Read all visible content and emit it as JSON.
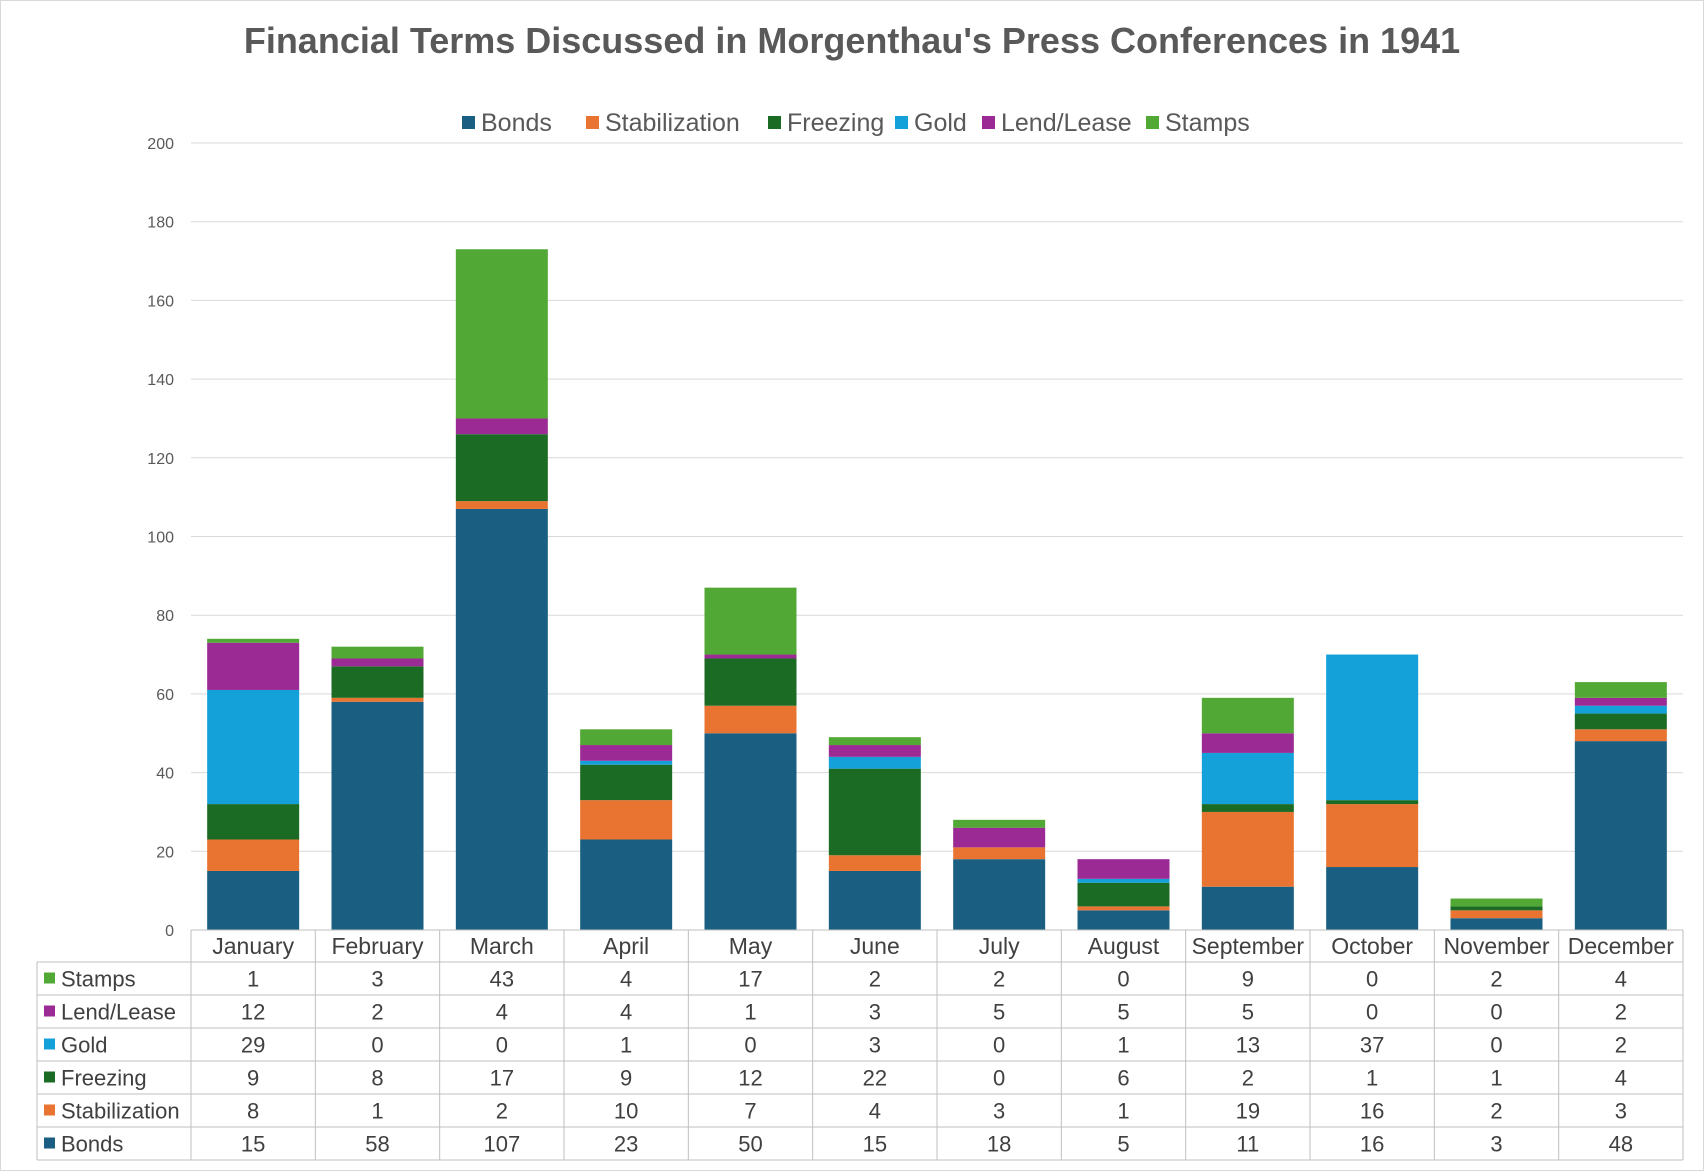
{
  "chart_data": {
    "type": "bar",
    "stacked": true,
    "title": "Financial Terms Discussed in Morgenthau's Press Conferences in 1941",
    "xlabel": "",
    "ylabel": "",
    "ylim": [
      0,
      200
    ],
    "yticks": [
      "0",
      "20",
      "40",
      "60",
      "80",
      "100",
      "120",
      "140",
      "160",
      "180",
      "200"
    ],
    "grid": true,
    "legend_position": "top",
    "categories": [
      "January",
      "February",
      "March",
      "April",
      "May",
      "June",
      "July",
      "August",
      "September",
      "October",
      "November",
      "December"
    ],
    "series": [
      {
        "name": "Bonds",
        "color": "#1a5f82",
        "values": [
          15,
          58,
          107,
          23,
          50,
          15,
          18,
          5,
          11,
          16,
          3,
          48
        ]
      },
      {
        "name": "Stabilization",
        "color": "#e97432",
        "values": [
          8,
          1,
          2,
          10,
          7,
          4,
          3,
          1,
          19,
          16,
          2,
          3
        ]
      },
      {
        "name": "Freezing",
        "color": "#1c6b25",
        "values": [
          9,
          8,
          17,
          9,
          12,
          22,
          0,
          6,
          2,
          1,
          1,
          4
        ]
      },
      {
        "name": "Gold",
        "color": "#14a0d8",
        "values": [
          29,
          0,
          0,
          1,
          0,
          3,
          0,
          1,
          13,
          37,
          0,
          2
        ]
      },
      {
        "name": "Lend/Lease",
        "color": "#9b2a95",
        "values": [
          12,
          2,
          4,
          4,
          1,
          3,
          5,
          5,
          5,
          0,
          0,
          2
        ]
      },
      {
        "name": "Stamps",
        "color": "#52a834",
        "values": [
          1,
          3,
          43,
          4,
          17,
          2,
          2,
          0,
          9,
          0,
          2,
          4
        ]
      }
    ],
    "table_row_order": [
      "Stamps",
      "Lend/Lease",
      "Gold",
      "Freezing",
      "Stabilization",
      "Bonds"
    ]
  }
}
